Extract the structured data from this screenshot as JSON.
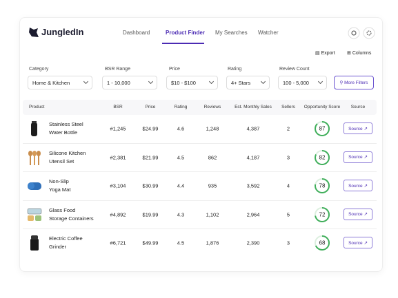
{
  "header": {
    "logo": "JungledIn",
    "nav": [
      "Dashboard",
      "Product Finder",
      "My Searches",
      "Watcher"
    ]
  },
  "toolbar": {
    "export": "Export",
    "columns": "Columns"
  },
  "filters": [
    {
      "label": "Category",
      "value": "Home & Kitchen"
    },
    {
      "label": "BSR Range",
      "value": "1 - 10,000"
    },
    {
      "label": "Price",
      "value": "$10 - $100"
    },
    {
      "label": "Rating",
      "value": "4+ Stars"
    },
    {
      "label": "Review Count",
      "value": "100 - 5,000"
    }
  ],
  "more_filters": "More Filters",
  "table": {
    "columns": [
      "Product",
      "BSR",
      "Price",
      "Rating",
      "Reviews",
      "Est. Monthly Sales",
      "Sellers",
      "Opportunity Score",
      "Source"
    ],
    "rows": [
      {
        "name": [
          "Stainless Steel",
          "Water Bottle"
        ],
        "bsr": "#1,245",
        "price": "$24.99",
        "rating": "4.6",
        "reviews": "1,248",
        "sales": "4,387",
        "sellers": "2",
        "score": 87,
        "source": "Source ↗"
      },
      {
        "name": [
          "Silicone Kitchen",
          "Utensil Set"
        ],
        "bsr": "#2,381",
        "price": "$21.99",
        "rating": "4.5",
        "reviews": "862",
        "sales": "4,187",
        "sellers": "3",
        "score": 82,
        "source": "Source ↗"
      },
      {
        "name": [
          "Non-Slip",
          "Yoga Mat"
        ],
        "bsr": "#3,104",
        "price": "$30.99",
        "rating": "4.4",
        "reviews": "935",
        "sales": "3,592",
        "sellers": "4",
        "score": 78,
        "source": "Source ↗"
      },
      {
        "name": [
          "Glass Food",
          "Storage Containers"
        ],
        "bsr": "#4,892",
        "price": "$19.99",
        "rating": "4.3",
        "reviews": "1,102",
        "sales": "2,964",
        "sellers": "5",
        "score": 72,
        "source": "Source ↗"
      },
      {
        "name": [
          "Electric Coffee",
          "Grinder"
        ],
        "bsr": "#6,721",
        "price": "$49.99",
        "rating": "4.5",
        "reviews": "1,876",
        "sales": "2,390",
        "sellers": "3",
        "score": 68,
        "source": "Source ↗"
      }
    ]
  }
}
